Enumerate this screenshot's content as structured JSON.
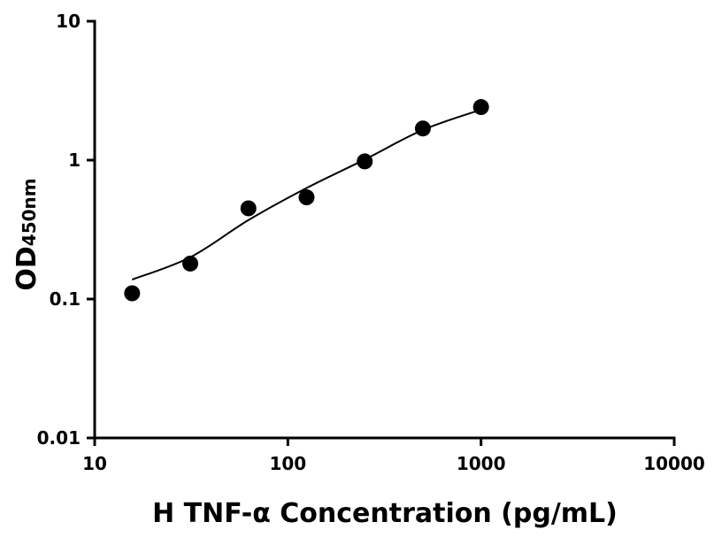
{
  "chart_data": {
    "type": "scatter",
    "x_label": "H TNF-α Concentration (pg/mL)",
    "y_label": "OD",
    "y_label_sub": "450nm",
    "x_log": true,
    "y_log": true,
    "xlim": [
      10,
      10000
    ],
    "xticks": [
      10,
      100,
      1000,
      10000
    ],
    "ylim": [
      0.01,
      10
    ],
    "yticks": [
      0.01,
      0.1,
      1,
      10
    ],
    "color": "#000000",
    "series": [
      {
        "x": [
          15.625,
          31.25,
          62.5,
          125,
          250,
          500,
          1000
        ],
        "values": [
          0.11,
          0.18,
          0.45,
          0.54,
          0.98,
          1.69,
          2.41
        ],
        "marker": "circle"
      },
      {
        "x": [
          15.625,
          31.25,
          62.5,
          125,
          250,
          500,
          1000
        ],
        "values": [
          0.138,
          0.2,
          0.37,
          0.63,
          1.01,
          1.65,
          2.31
        ],
        "marker": "line"
      }
    ]
  }
}
